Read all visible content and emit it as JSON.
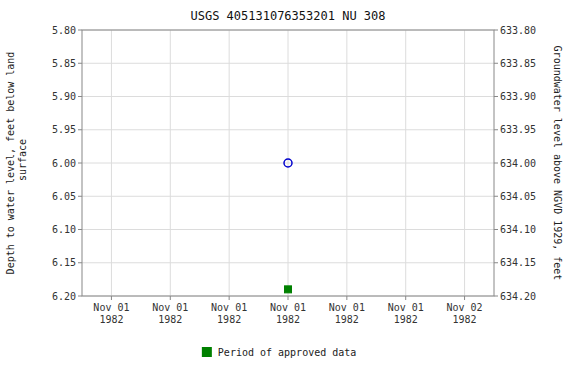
{
  "chart_data": {
    "type": "scatter",
    "title": "USGS 405131076353201 NU   308",
    "ylabel": "Depth to water level, feet below land\n surface",
    "y2label": "Groundwater level above NGVD 1929, feet",
    "categories": [
      "Nov 01\n1982",
      "Nov 01\n1982",
      "Nov 01\n1982",
      "Nov 01\n1982",
      "Nov 01\n1982",
      "Nov 01\n1982",
      "Nov 02\n1982"
    ],
    "series": [
      {
        "color": "#0000cc",
        "marker": "open-circle",
        "values": [
          null,
          null,
          null,
          6.0,
          null,
          null,
          null
        ]
      },
      {
        "name": "Period of approved data",
        "color": "#008000",
        "marker": "square",
        "values": [
          null,
          null,
          null,
          6.19,
          null,
          null,
          null
        ]
      }
    ],
    "ylim": [
      6.2,
      5.8
    ],
    "yticks": [
      {
        "value": 5.8,
        "label": "5.80"
      },
      5.85,
      {
        "value": 5.9,
        "label": "5.90"
      },
      5.95,
      {
        "value": 6.0,
        "label": "6.00"
      },
      6.05,
      {
        "value": 6.1,
        "label": "6.10"
      },
      6.15,
      {
        "value": 6.2,
        "label": "6.20"
      }
    ],
    "y2lim": [
      634.2,
      633.8
    ],
    "y2ticks": [
      {
        "value": 634.2,
        "label": "634.20"
      },
      634.15,
      {
        "value": 634.1,
        "label": "634.10"
      },
      634.05,
      {
        "value": 634.0,
        "label": "634.00"
      },
      633.95,
      {
        "value": 633.9,
        "label": "633.90"
      },
      633.85,
      {
        "value": 633.8,
        "label": "633.80"
      }
    ],
    "grid": true,
    "legend": "bottom"
  }
}
